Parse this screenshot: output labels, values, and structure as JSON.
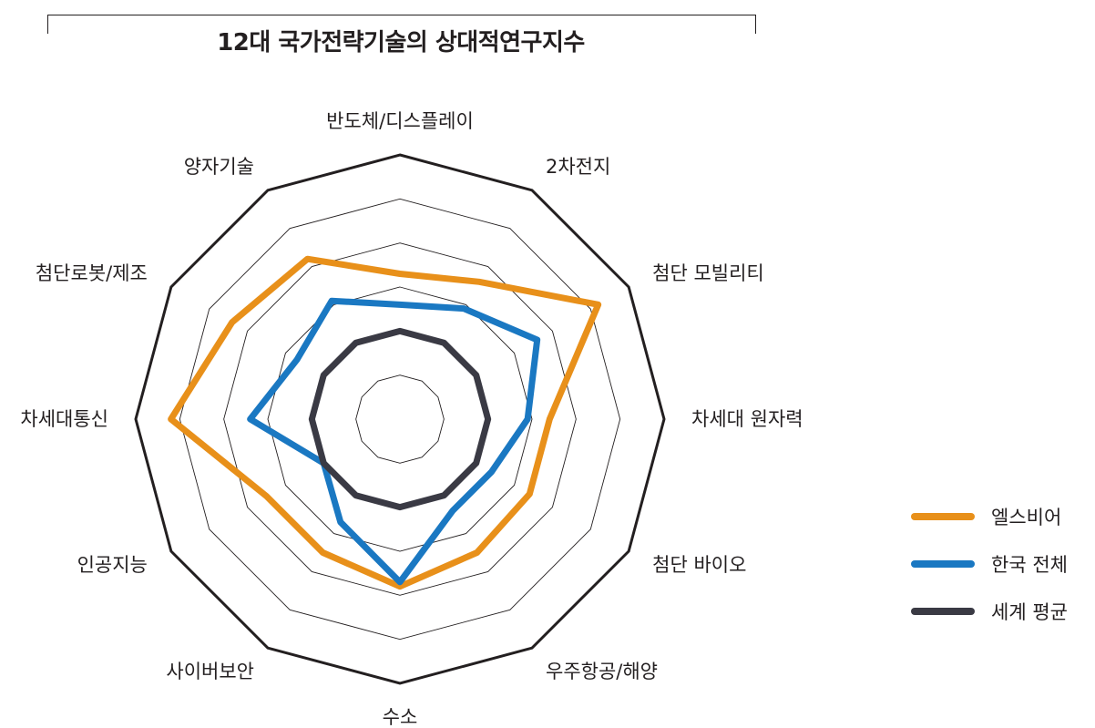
{
  "title": "12대 국가전략기술의 상대적연구지수",
  "chart_data": {
    "type": "radar",
    "title": "12대 국가전략기술의 상대적연구지수",
    "categories": [
      "반도체/디스플레이",
      "2차전지",
      "첨단 모빌리티",
      "차세대 원자력",
      "첨단 바이오",
      "우주항공/해양",
      "수소",
      "사이버보안",
      "인공지능",
      "차세대통신",
      "첨단로봇/제조",
      "양자기술"
    ],
    "rlim": [
      0,
      6
    ],
    "rings": 6,
    "grid": true,
    "legend_position": "right",
    "series": [
      {
        "name": "엘스비어",
        "color": "#e8901a",
        "values": [
          3.3,
          3.6,
          5.2,
          3.4,
          3.4,
          3.5,
          3.8,
          3.5,
          3.5,
          5.2,
          4.4,
          4.2
        ]
      },
      {
        "name": "한국 전체",
        "color": "#1a78c2",
        "values": [
          2.6,
          2.9,
          3.6,
          2.9,
          2.4,
          2.4,
          3.7,
          2.7,
          2.0,
          3.4,
          2.7,
          3.1
        ]
      },
      {
        "name": "세계 평균",
        "color": "#3a3a44",
        "values": [
          2.0,
          2.0,
          2.0,
          2.0,
          2.0,
          2.0,
          2.0,
          2.0,
          2.0,
          2.0,
          2.0,
          2.0
        ]
      }
    ]
  }
}
